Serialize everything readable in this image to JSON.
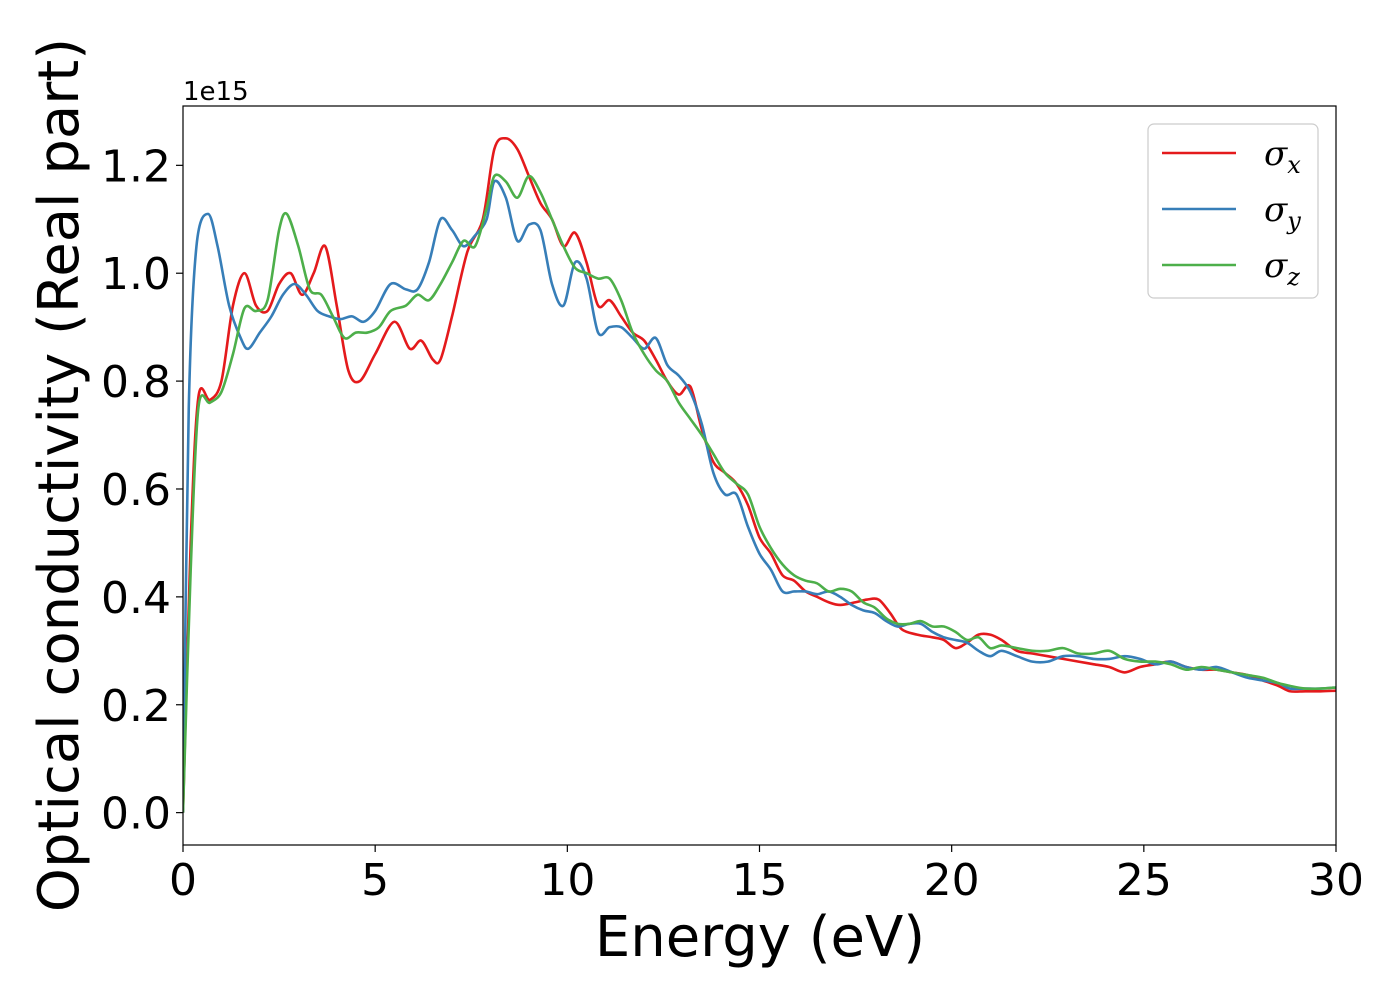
{
  "chart_data": {
    "type": "line",
    "title": "",
    "xlabel": "Energy (eV)",
    "ylabel": "Optical conductivity (Real part)",
    "y_offset_label": "1e15",
    "xlim": [
      0,
      30
    ],
    "ylim": [
      -0.06,
      1.31
    ],
    "x_ticks": [
      0,
      5,
      10,
      15,
      20,
      25,
      30
    ],
    "x_tick_labels": [
      "0",
      "5",
      "10",
      "15",
      "20",
      "25",
      "30"
    ],
    "y_ticks": [
      0.0,
      0.2,
      0.4,
      0.6,
      0.8,
      1.0,
      1.2
    ],
    "y_tick_labels": [
      "0.0",
      "0.2",
      "0.4",
      "0.6",
      "0.8",
      "1.0",
      "1.2"
    ],
    "grid": false,
    "legend_position": "top-right",
    "series": [
      {
        "name": "σx",
        "symbol": "σ",
        "subscript": "x",
        "color": "#e41a1c",
        "points": [
          [
            0,
            0
          ],
          [
            0.2,
            0.5
          ],
          [
            0.4,
            0.77
          ],
          [
            0.7,
            0.765
          ],
          [
            1.0,
            0.8
          ],
          [
            1.3,
            0.94
          ],
          [
            1.6,
            1.0
          ],
          [
            1.9,
            0.94
          ],
          [
            2.2,
            0.93
          ],
          [
            2.5,
            0.98
          ],
          [
            2.8,
            1.0
          ],
          [
            3.1,
            0.96
          ],
          [
            3.4,
            1.0
          ],
          [
            3.7,
            1.05
          ],
          [
            4.0,
            0.94
          ],
          [
            4.3,
            0.82
          ],
          [
            4.6,
            0.8
          ],
          [
            5.0,
            0.85
          ],
          [
            5.5,
            0.91
          ],
          [
            5.9,
            0.86
          ],
          [
            6.2,
            0.875
          ],
          [
            6.5,
            0.84
          ],
          [
            6.7,
            0.84
          ],
          [
            7.0,
            0.92
          ],
          [
            7.4,
            1.04
          ],
          [
            7.8,
            1.1
          ],
          [
            8.1,
            1.23
          ],
          [
            8.4,
            1.25
          ],
          [
            8.7,
            1.23
          ],
          [
            9.0,
            1.18
          ],
          [
            9.3,
            1.13
          ],
          [
            9.6,
            1.1
          ],
          [
            9.9,
            1.05
          ],
          [
            10.2,
            1.075
          ],
          [
            10.5,
            1.02
          ],
          [
            10.8,
            0.94
          ],
          [
            11.1,
            0.95
          ],
          [
            11.4,
            0.92
          ],
          [
            11.7,
            0.89
          ],
          [
            12.0,
            0.875
          ],
          [
            12.3,
            0.84
          ],
          [
            12.6,
            0.8
          ],
          [
            12.9,
            0.775
          ],
          [
            13.2,
            0.79
          ],
          [
            13.5,
            0.71
          ],
          [
            13.8,
            0.65
          ],
          [
            14.1,
            0.63
          ],
          [
            14.4,
            0.61
          ],
          [
            14.7,
            0.57
          ],
          [
            15.0,
            0.51
          ],
          [
            15.3,
            0.48
          ],
          [
            15.6,
            0.44
          ],
          [
            15.9,
            0.43
          ],
          [
            16.2,
            0.41
          ],
          [
            16.5,
            0.4
          ],
          [
            16.8,
            0.39
          ],
          [
            17.1,
            0.385
          ],
          [
            17.5,
            0.39
          ],
          [
            17.8,
            0.395
          ],
          [
            18.1,
            0.395
          ],
          [
            18.4,
            0.37
          ],
          [
            18.7,
            0.34
          ],
          [
            19.1,
            0.33
          ],
          [
            19.5,
            0.325
          ],
          [
            19.8,
            0.32
          ],
          [
            20.1,
            0.305
          ],
          [
            20.4,
            0.315
          ],
          [
            20.7,
            0.33
          ],
          [
            21.0,
            0.33
          ],
          [
            21.3,
            0.32
          ],
          [
            21.7,
            0.3
          ],
          [
            22.1,
            0.295
          ],
          [
            22.5,
            0.29
          ],
          [
            22.9,
            0.285
          ],
          [
            23.3,
            0.28
          ],
          [
            23.7,
            0.275
          ],
          [
            24.1,
            0.27
          ],
          [
            24.5,
            0.26
          ],
          [
            24.9,
            0.27
          ],
          [
            25.3,
            0.275
          ],
          [
            25.7,
            0.28
          ],
          [
            26.1,
            0.27
          ],
          [
            26.5,
            0.265
          ],
          [
            26.9,
            0.265
          ],
          [
            27.3,
            0.26
          ],
          [
            27.7,
            0.255
          ],
          [
            28.1,
            0.245
          ],
          [
            28.5,
            0.235
          ],
          [
            28.8,
            0.225
          ],
          [
            29.2,
            0.225
          ],
          [
            29.6,
            0.225
          ],
          [
            30.0,
            0.226
          ]
        ]
      },
      {
        "name": "σy",
        "symbol": "σ",
        "subscript": "y",
        "color": "#377eb8",
        "points": [
          [
            0,
            0
          ],
          [
            0.15,
            0.75
          ],
          [
            0.35,
            1.05
          ],
          [
            0.65,
            1.11
          ],
          [
            0.9,
            1.05
          ],
          [
            1.2,
            0.94
          ],
          [
            1.5,
            0.88
          ],
          [
            1.7,
            0.86
          ],
          [
            2.0,
            0.89
          ],
          [
            2.3,
            0.92
          ],
          [
            2.6,
            0.96
          ],
          [
            2.9,
            0.98
          ],
          [
            3.2,
            0.96
          ],
          [
            3.5,
            0.93
          ],
          [
            3.8,
            0.92
          ],
          [
            4.1,
            0.915
          ],
          [
            4.4,
            0.92
          ],
          [
            4.7,
            0.91
          ],
          [
            5.0,
            0.93
          ],
          [
            5.4,
            0.98
          ],
          [
            5.8,
            0.97
          ],
          [
            6.1,
            0.97
          ],
          [
            6.4,
            1.02
          ],
          [
            6.7,
            1.1
          ],
          [
            7.0,
            1.08
          ],
          [
            7.3,
            1.05
          ],
          [
            7.6,
            1.07
          ],
          [
            7.9,
            1.1
          ],
          [
            8.1,
            1.17
          ],
          [
            8.4,
            1.14
          ],
          [
            8.7,
            1.06
          ],
          [
            9.0,
            1.09
          ],
          [
            9.3,
            1.08
          ],
          [
            9.6,
            0.98
          ],
          [
            9.9,
            0.94
          ],
          [
            10.2,
            1.02
          ],
          [
            10.5,
            0.99
          ],
          [
            10.8,
            0.89
          ],
          [
            11.1,
            0.9
          ],
          [
            11.4,
            0.9
          ],
          [
            11.7,
            0.88
          ],
          [
            12.0,
            0.86
          ],
          [
            12.3,
            0.88
          ],
          [
            12.6,
            0.83
          ],
          [
            12.9,
            0.81
          ],
          [
            13.2,
            0.78
          ],
          [
            13.5,
            0.72
          ],
          [
            13.8,
            0.63
          ],
          [
            14.1,
            0.59
          ],
          [
            14.4,
            0.59
          ],
          [
            14.7,
            0.53
          ],
          [
            15.0,
            0.48
          ],
          [
            15.3,
            0.45
          ],
          [
            15.6,
            0.41
          ],
          [
            15.9,
            0.41
          ],
          [
            16.2,
            0.41
          ],
          [
            16.5,
            0.405
          ],
          [
            16.8,
            0.41
          ],
          [
            17.1,
            0.4
          ],
          [
            17.4,
            0.385
          ],
          [
            17.7,
            0.375
          ],
          [
            18.0,
            0.37
          ],
          [
            18.3,
            0.355
          ],
          [
            18.6,
            0.345
          ],
          [
            18.9,
            0.35
          ],
          [
            19.2,
            0.35
          ],
          [
            19.5,
            0.335
          ],
          [
            19.8,
            0.325
          ],
          [
            20.1,
            0.32
          ],
          [
            20.4,
            0.315
          ],
          [
            20.7,
            0.3
          ],
          [
            21.0,
            0.29
          ],
          [
            21.3,
            0.3
          ],
          [
            21.7,
            0.29
          ],
          [
            22.1,
            0.28
          ],
          [
            22.5,
            0.28
          ],
          [
            22.9,
            0.29
          ],
          [
            23.3,
            0.29
          ],
          [
            23.7,
            0.285
          ],
          [
            24.1,
            0.285
          ],
          [
            24.5,
            0.29
          ],
          [
            24.9,
            0.285
          ],
          [
            25.3,
            0.275
          ],
          [
            25.7,
            0.28
          ],
          [
            26.1,
            0.27
          ],
          [
            26.5,
            0.265
          ],
          [
            26.9,
            0.27
          ],
          [
            27.3,
            0.26
          ],
          [
            27.7,
            0.25
          ],
          [
            28.1,
            0.245
          ],
          [
            28.5,
            0.24
          ],
          [
            28.8,
            0.23
          ],
          [
            29.2,
            0.23
          ],
          [
            29.6,
            0.23
          ],
          [
            30.0,
            0.232
          ]
        ]
      },
      {
        "name": "σz",
        "symbol": "σ",
        "subscript": "z",
        "color": "#4daf4a",
        "points": [
          [
            0,
            0
          ],
          [
            0.2,
            0.45
          ],
          [
            0.4,
            0.75
          ],
          [
            0.7,
            0.76
          ],
          [
            1.0,
            0.78
          ],
          [
            1.3,
            0.85
          ],
          [
            1.6,
            0.935
          ],
          [
            1.9,
            0.93
          ],
          [
            2.2,
            0.95
          ],
          [
            2.5,
            1.08
          ],
          [
            2.7,
            1.11
          ],
          [
            3.0,
            1.05
          ],
          [
            3.3,
            0.97
          ],
          [
            3.6,
            0.96
          ],
          [
            3.9,
            0.92
          ],
          [
            4.2,
            0.88
          ],
          [
            4.5,
            0.89
          ],
          [
            4.8,
            0.89
          ],
          [
            5.1,
            0.9
          ],
          [
            5.4,
            0.93
          ],
          [
            5.8,
            0.94
          ],
          [
            6.1,
            0.96
          ],
          [
            6.4,
            0.95
          ],
          [
            6.7,
            0.98
          ],
          [
            7.0,
            1.02
          ],
          [
            7.3,
            1.06
          ],
          [
            7.6,
            1.05
          ],
          [
            7.9,
            1.12
          ],
          [
            8.1,
            1.18
          ],
          [
            8.4,
            1.17
          ],
          [
            8.7,
            1.14
          ],
          [
            9.0,
            1.18
          ],
          [
            9.3,
            1.15
          ],
          [
            9.6,
            1.1
          ],
          [
            9.9,
            1.05
          ],
          [
            10.2,
            1.01
          ],
          [
            10.5,
            1.0
          ],
          [
            10.8,
            0.99
          ],
          [
            11.1,
            0.99
          ],
          [
            11.4,
            0.95
          ],
          [
            11.7,
            0.89
          ],
          [
            12.0,
            0.85
          ],
          [
            12.3,
            0.82
          ],
          [
            12.6,
            0.8
          ],
          [
            12.9,
            0.76
          ],
          [
            13.2,
            0.73
          ],
          [
            13.5,
            0.7
          ],
          [
            13.8,
            0.665
          ],
          [
            14.1,
            0.63
          ],
          [
            14.4,
            0.61
          ],
          [
            14.7,
            0.59
          ],
          [
            15.0,
            0.53
          ],
          [
            15.3,
            0.49
          ],
          [
            15.6,
            0.46
          ],
          [
            15.9,
            0.44
          ],
          [
            16.2,
            0.43
          ],
          [
            16.5,
            0.425
          ],
          [
            16.8,
            0.41
          ],
          [
            17.1,
            0.415
          ],
          [
            17.4,
            0.41
          ],
          [
            17.7,
            0.39
          ],
          [
            18.0,
            0.38
          ],
          [
            18.3,
            0.36
          ],
          [
            18.6,
            0.35
          ],
          [
            18.9,
            0.35
          ],
          [
            19.2,
            0.355
          ],
          [
            19.5,
            0.345
          ],
          [
            19.8,
            0.345
          ],
          [
            20.1,
            0.335
          ],
          [
            20.4,
            0.32
          ],
          [
            20.7,
            0.325
          ],
          [
            21.0,
            0.305
          ],
          [
            21.3,
            0.31
          ],
          [
            21.7,
            0.305
          ],
          [
            22.1,
            0.3
          ],
          [
            22.5,
            0.3
          ],
          [
            22.9,
            0.305
          ],
          [
            23.3,
            0.295
          ],
          [
            23.7,
            0.295
          ],
          [
            24.1,
            0.3
          ],
          [
            24.5,
            0.285
          ],
          [
            24.9,
            0.28
          ],
          [
            25.3,
            0.28
          ],
          [
            25.7,
            0.275
          ],
          [
            26.1,
            0.265
          ],
          [
            26.5,
            0.27
          ],
          [
            26.9,
            0.265
          ],
          [
            27.3,
            0.26
          ],
          [
            27.7,
            0.255
          ],
          [
            28.1,
            0.25
          ],
          [
            28.5,
            0.24
          ],
          [
            28.8,
            0.235
          ],
          [
            29.2,
            0.23
          ],
          [
            29.6,
            0.23
          ],
          [
            30.0,
            0.232
          ]
        ]
      }
    ]
  }
}
